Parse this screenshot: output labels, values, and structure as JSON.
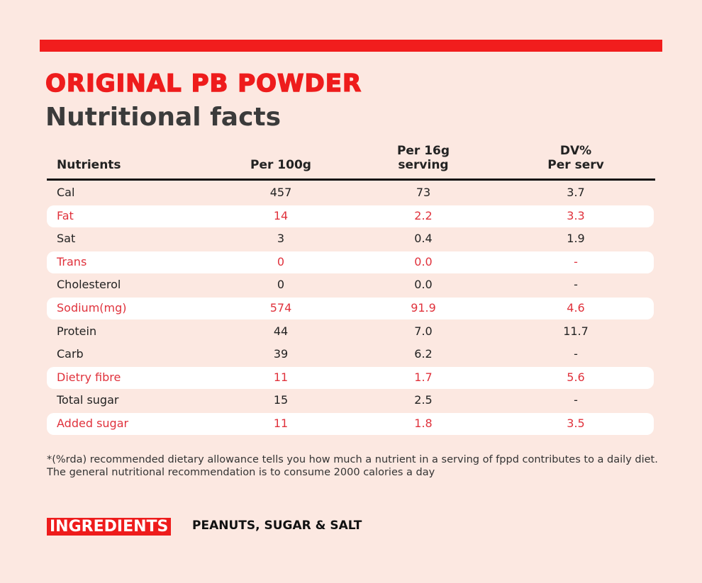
{
  "header": {
    "brand": "ORIGINAL PB POWDER",
    "title": "Nutritional facts"
  },
  "table": {
    "headers": [
      [
        "Nutrients"
      ],
      [
        "Per 100g"
      ],
      [
        "Per 16g",
        "serving"
      ],
      [
        "DV%",
        "Per serv"
      ]
    ],
    "rows": [
      {
        "cells": [
          "Cal",
          "457",
          "73",
          "3.7"
        ],
        "highlight": false
      },
      {
        "cells": [
          "Fat",
          "14",
          "2.2",
          "3.3"
        ],
        "highlight": true
      },
      {
        "cells": [
          "Sat",
          "3",
          "0.4",
          "1.9"
        ],
        "highlight": false
      },
      {
        "cells": [
          "Trans",
          "0",
          "0.0",
          "-"
        ],
        "highlight": true
      },
      {
        "cells": [
          "Cholesterol",
          "0",
          "0.0",
          "-"
        ],
        "highlight": false
      },
      {
        "cells": [
          "Sodium(mg)",
          "574",
          "91.9",
          "4.6"
        ],
        "highlight": true
      },
      {
        "cells": [
          "Protein",
          "44",
          "7.0",
          "11.7"
        ],
        "highlight": false
      },
      {
        "cells": [
          "Carb",
          "39",
          "6.2",
          "-"
        ],
        "highlight": false
      },
      {
        "cells": [
          "Dietry fibre",
          "11",
          "1.7",
          "5.6"
        ],
        "highlight": true
      },
      {
        "cells": [
          "Total sugar",
          "15",
          "2.5",
          "-"
        ],
        "highlight": false
      },
      {
        "cells": [
          "Added sugar",
          "11",
          "1.8",
          "3.5"
        ],
        "highlight": true
      }
    ]
  },
  "footnote": [
    "*(%rda) recommended dietary allowance tells you how much a nutrient in a serving of fppd contributes to a daily diet.",
    "The general nutritional recommendation is to consume 2000 calories a day"
  ],
  "ingredients": {
    "label": "INGREDIENTS",
    "text": "PEANUTS, SUGAR & SALT"
  }
}
